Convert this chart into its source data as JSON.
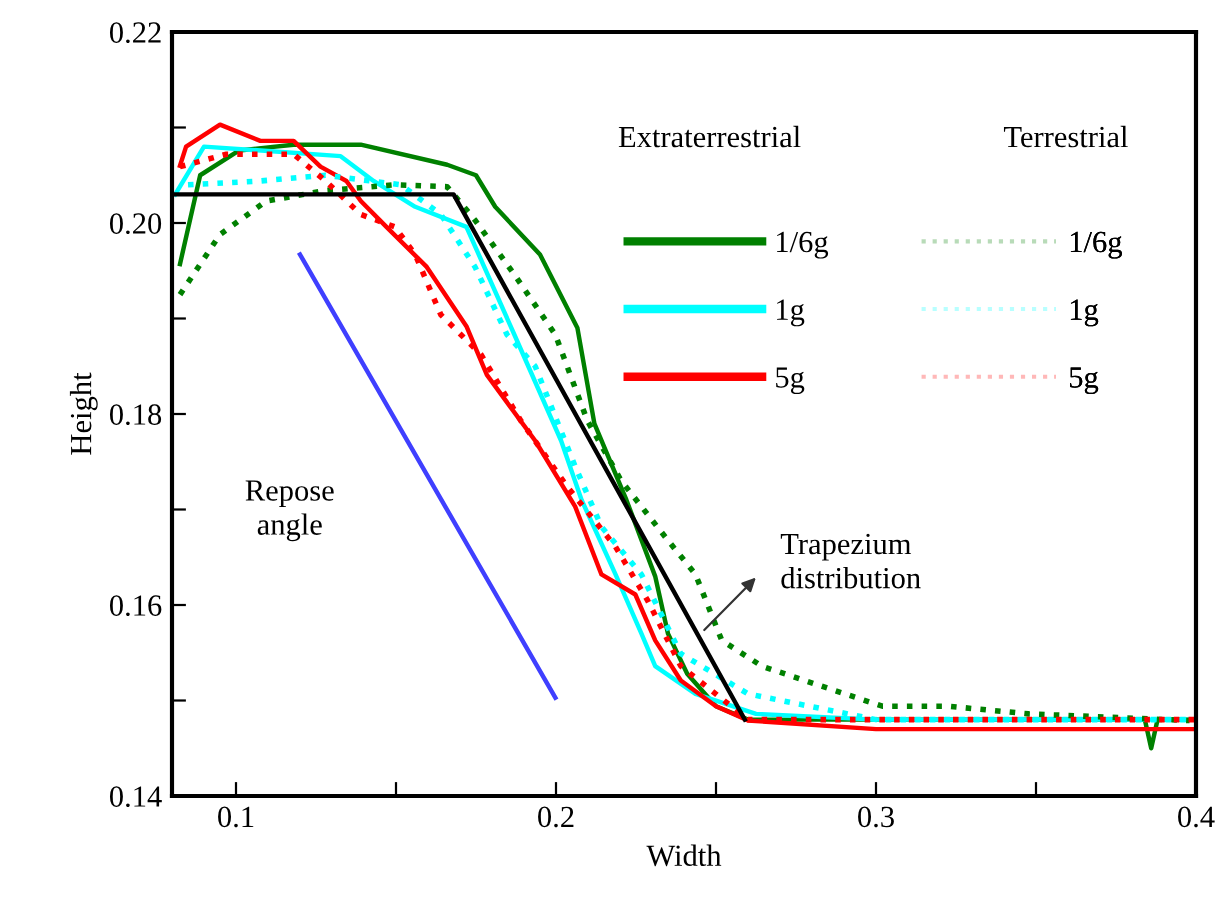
{
  "chart_data": {
    "type": "line",
    "xlabel": "Width",
    "ylabel": "Height",
    "xlim": [
      0.08,
      0.4
    ],
    "ylim": [
      0.14,
      0.22
    ],
    "xticks": [
      0.1,
      {
        "value": 0.15,
        "label": null
      },
      0.2,
      {
        "value": 0.25,
        "label": null
      },
      0.3,
      {
        "value": 0.35,
        "label": null
      },
      0.4
    ],
    "yticks": [
      0.14,
      {
        "value": 0.15,
        "label": null
      },
      0.16,
      {
        "value": 0.17,
        "label": null
      },
      0.18,
      {
        "value": 0.19,
        "label": null
      },
      {
        "value": 0.2,
        "label": "0.20"
      },
      {
        "value": 0.21,
        "label": null
      },
      0.22
    ],
    "grid": false,
    "legend": "top right",
    "marker": "none",
    "annotations": [
      "Extraterrestrial",
      "Terrestrial",
      "Repose\nangle",
      "Trapezium\ndistribution"
    ],
    "series": [
      {
        "name": "1/6g",
        "color": "#008000",
        "line_style": "solid",
        "x": [
          0.0825,
          0.0888,
          0.101,
          0.118,
          0.139,
          0.166,
          0.175,
          0.181,
          0.195,
          0.2067,
          0.212,
          0.222,
          0.231,
          0.235,
          0.241,
          0.25,
          0.26,
          0.3,
          0.35,
          0.384,
          0.386,
          0.388,
          0.4
        ],
        "values": [
          0.1957,
          0.205,
          0.2076,
          0.2082,
          0.2082,
          0.2061,
          0.205,
          0.2017,
          0.1967,
          0.189,
          0.179,
          0.171,
          0.163,
          0.157,
          0.1528,
          0.1494,
          0.148,
          0.148,
          0.148,
          0.148,
          0.145,
          0.148,
          0.148
        ]
      },
      {
        "name": "1g",
        "color": "#00ffff",
        "line_style": "solid",
        "x": [
          0.081,
          0.09,
          0.1327,
          0.143,
          0.156,
          0.172,
          0.187,
          0.2016,
          0.208,
          0.2186,
          0.2267,
          0.231,
          0.2436,
          0.2625,
          0.3,
          0.4
        ],
        "values": [
          0.203,
          0.208,
          0.207,
          0.2044,
          0.2017,
          0.1996,
          0.1883,
          0.1772,
          0.171,
          0.1632,
          0.157,
          0.1536,
          0.1507,
          0.1486,
          0.148,
          0.148
        ]
      },
      {
        "name": "5g",
        "color": "#ff0000",
        "line_style": "solid",
        "x": [
          0.0825,
          0.0844,
          0.095,
          0.1076,
          0.118,
          0.1264,
          0.1345,
          0.139,
          0.147,
          0.1596,
          0.172,
          0.1784,
          0.1935,
          0.206,
          0.2142,
          0.2248,
          0.231,
          0.239,
          0.25,
          0.26,
          0.3,
          0.35,
          0.4
        ],
        "values": [
          0.206,
          0.208,
          0.2103,
          0.2086,
          0.2086,
          0.2059,
          0.2044,
          0.2023,
          0.1996,
          0.1954,
          0.1892,
          0.1841,
          0.1772,
          0.1703,
          0.1632,
          0.1611,
          0.1563,
          0.1521,
          0.1494,
          0.1479,
          0.147,
          0.147,
          0.147
        ]
      },
      {
        "name": "1/6g",
        "color": "#008000",
        "line_style": "dotted",
        "x": [
          0.0825,
          0.095,
          0.1095,
          0.128,
          0.1496,
          0.166,
          0.1747,
          0.187,
          0.1998,
          0.2098,
          0.2204,
          0.2349,
          0.2436,
          0.2518,
          0.2643,
          0.283,
          0.302,
          0.3226,
          0.3477,
          0.398
        ],
        "values": [
          0.1925,
          0.1988,
          0.2023,
          0.2034,
          0.204,
          0.2038,
          0.2003,
          0.1946,
          0.1883,
          0.1793,
          0.173,
          0.1668,
          0.1632,
          0.1563,
          0.1536,
          0.1515,
          0.1494,
          0.1494,
          0.1486,
          0.1479
        ]
      },
      {
        "name": "1g",
        "color": "#00ffff",
        "line_style": "dotted",
        "x": [
          0.085,
          0.1076,
          0.128,
          0.1515,
          0.164,
          0.1747,
          0.1847,
          0.1935,
          0.206,
          0.2142,
          0.2267,
          0.239,
          0.26,
          0.3,
          0.4
        ],
        "values": [
          0.204,
          0.2044,
          0.205,
          0.204,
          0.2009,
          0.1954,
          0.1883,
          0.185,
          0.1745,
          0.1682,
          0.1632,
          0.1549,
          0.1507,
          0.148,
          0.148
        ]
      },
      {
        "name": "5g",
        "color": "#ff0000",
        "line_style": "dotted",
        "x": [
          0.0825,
          0.097,
          0.118,
          0.128,
          0.139,
          0.1496,
          0.156,
          0.164,
          0.1766,
          0.189,
          0.2035,
          0.2186,
          0.2286,
          0.239,
          0.26,
          0.3,
          0.4
        ],
        "values": [
          0.2059,
          0.2072,
          0.2072,
          0.2044,
          0.2009,
          0.1996,
          0.1967,
          0.1904,
          0.1862,
          0.1793,
          0.1724,
          0.1661,
          0.1605,
          0.1536,
          0.148,
          0.148,
          0.148
        ]
      },
      {
        "color": "#000000",
        "line_style": "solid",
        "x": [
          0.08,
          0.168,
          0.259
        ],
        "values": [
          0.203,
          0.203,
          0.148
        ]
      },
      {
        "color": "#3f3fff",
        "line_style": "solid",
        "x": [
          0.12,
          0.1998
        ],
        "values": [
          0.1967,
          0.1503
        ]
      }
    ]
  }
}
